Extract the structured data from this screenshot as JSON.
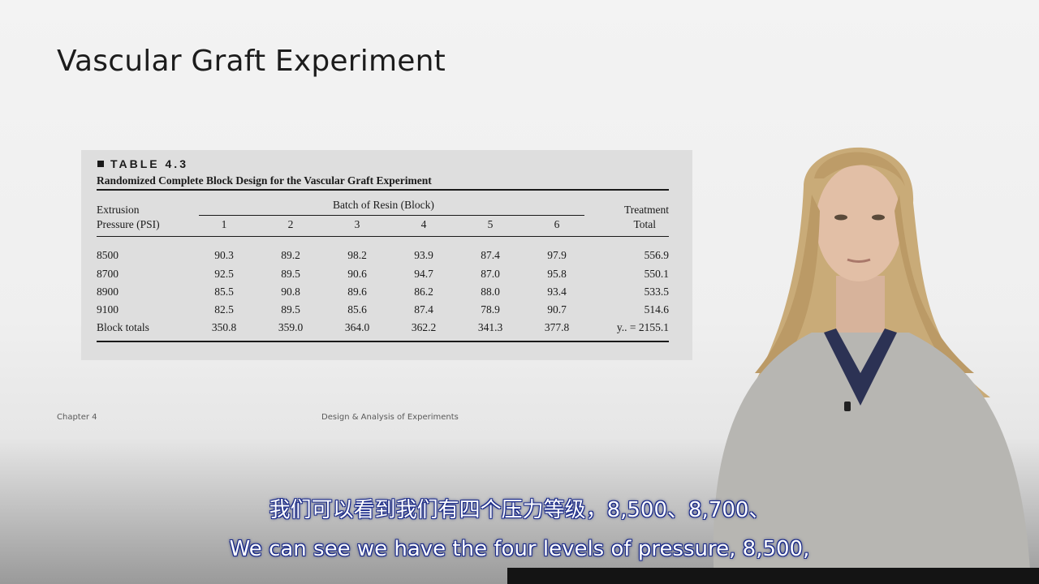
{
  "slide": {
    "title": "Vascular Graft Experiment",
    "footer_left": "Chapter 4",
    "footer_center": "Design & Analysis of Experiments"
  },
  "table": {
    "label": "TABLE 4.3",
    "caption": "Randomized Complete Block Design for the Vascular Graft Experiment",
    "stub_header_line1": "Extrusion",
    "stub_header_line2": "Pressure (PSI)",
    "group_header": "Batch of Resin (Block)",
    "block_headers": [
      "1",
      "2",
      "3",
      "4",
      "5",
      "6"
    ],
    "total_header_line1": "Treatment",
    "total_header_line2": "Total",
    "rows": [
      {
        "label": "8500",
        "values": [
          "90.3",
          "89.2",
          "98.2",
          "93.9",
          "87.4",
          "97.9"
        ],
        "total": "556.9"
      },
      {
        "label": "8700",
        "values": [
          "92.5",
          "89.5",
          "90.6",
          "94.7",
          "87.0",
          "95.8"
        ],
        "total": "550.1"
      },
      {
        "label": "8900",
        "values": [
          "85.5",
          "90.8",
          "89.6",
          "86.2",
          "88.0",
          "93.4"
        ],
        "total": "533.5"
      },
      {
        "label": "9100",
        "values": [
          "82.5",
          "89.5",
          "85.6",
          "87.4",
          "78.9",
          "90.7"
        ],
        "total": "514.6"
      },
      {
        "label": "Block totals",
        "values": [
          "350.8",
          "359.0",
          "364.0",
          "362.2",
          "341.3",
          "377.8"
        ],
        "total": "y.. = 2155.1"
      }
    ]
  },
  "subtitles": {
    "zh": "我们可以看到我们有四个压力等级，8,500、8,700、",
    "en": "We can see we have the four levels of pressure, 8,500,"
  },
  "colors": {
    "subtitle_text": "#ffffff",
    "subtitle_outline": "#1a2a8a"
  }
}
